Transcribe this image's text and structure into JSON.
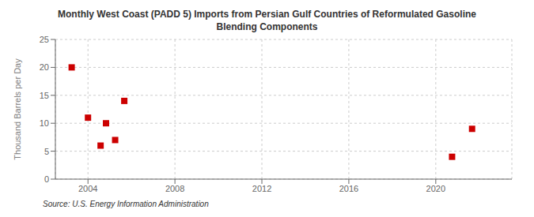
{
  "chart_data": {
    "type": "scatter",
    "title": "Monthly West Coast (PADD 5) Imports from Persian Gulf Countries of Reformulated Gasoline\nBlending Components",
    "ylabel": "Thousand Barrels per Day",
    "annotations": [
      "Source: U.S. Energy Information Administration"
    ],
    "x": [
      2003.25,
      2004.0,
      2004.58,
      2004.83,
      2005.25,
      2005.67,
      2020.75,
      2021.67
    ],
    "values": [
      20.0,
      11.0,
      6.0,
      10.0,
      7.0,
      14.0,
      4.0,
      9.0
    ],
    "color": "#cc0000",
    "marker": "square",
    "xlim": [
      2002.5,
      2023.5
    ],
    "xticks": [
      2004,
      2008,
      2012,
      2016,
      2020
    ],
    "ylim": [
      0,
      25
    ],
    "yticks": [
      0,
      5,
      10,
      15,
      20,
      25
    ],
    "grid": true
  }
}
